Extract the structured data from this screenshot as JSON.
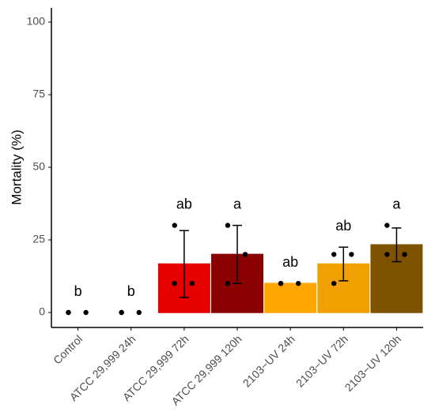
{
  "chart_data": {
    "type": "bar",
    "y_label": "Mortality (%)",
    "categories": [
      "Control",
      "ATCC 29,999 24h",
      "ATCC 29,999 72h",
      "ATCC 29,999 120h",
      "2103−UV 24h",
      "2103−UV 72h",
      "2103−UV 120h"
    ],
    "values": [
      0,
      0,
      16.7,
      20,
      10,
      16.7,
      23.3
    ],
    "errors": [
      0,
      0,
      11.5,
      10,
      0,
      5.8,
      5.8
    ],
    "points": [
      [
        0,
        0,
        0
      ],
      [
        0,
        0,
        0
      ],
      [
        30,
        10,
        10
      ],
      [
        30,
        10,
        20
      ],
      [
        10,
        10,
        10
      ],
      [
        20,
        10,
        20
      ],
      [
        30,
        20,
        20
      ]
    ],
    "letters": [
      "b",
      "b",
      "ab",
      "a",
      "ab",
      "ab",
      "a"
    ],
    "colors": [
      "#000000",
      "#ee1c1c",
      "#e60000",
      "#8b0000",
      "#ffa500",
      "#f0a000",
      "#7f5200"
    ],
    "ylim": [
      -5,
      105
    ],
    "yticks": [
      0,
      25,
      50,
      75,
      100
    ]
  }
}
